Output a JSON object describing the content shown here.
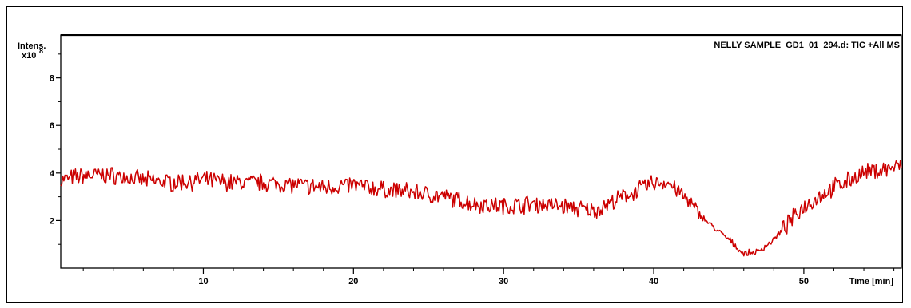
{
  "chart_data": {
    "type": "line",
    "title": "NELLY SAMPLE_GD1_01_294.d: TIC +All MS",
    "ylabel": "Intens.",
    "y_multiplier": "x10",
    "y_exponent": "8",
    "xlabel": "Time [min]",
    "xlim": [
      0.5,
      56.5
    ],
    "ylim": [
      0,
      9.8
    ],
    "x_ticks": [
      10,
      20,
      30,
      40,
      50
    ],
    "y_ticks": [
      2,
      4,
      6,
      8
    ],
    "grid": false,
    "series_color": "#cc0000",
    "anchors": {
      "x": [
        0.5,
        2,
        4,
        6,
        8,
        10,
        12,
        14,
        16,
        18,
        20,
        22,
        24,
        26,
        28,
        30,
        32,
        34,
        36,
        38,
        40,
        41,
        42,
        43,
        44,
        45,
        46,
        47,
        48,
        49,
        50,
        52,
        54,
        56.5
      ],
      "y": [
        3.7,
        3.9,
        3.9,
        3.7,
        3.6,
        3.7,
        3.6,
        3.6,
        3.5,
        3.4,
        3.5,
        3.3,
        3.2,
        3.0,
        2.7,
        2.6,
        2.7,
        2.6,
        2.4,
        3.0,
        3.6,
        3.6,
        3.0,
        2.3,
        1.7,
        1.2,
        0.6,
        0.7,
        1.2,
        1.9,
        2.6,
        3.4,
        4.0,
        4.3
      ]
    }
  }
}
